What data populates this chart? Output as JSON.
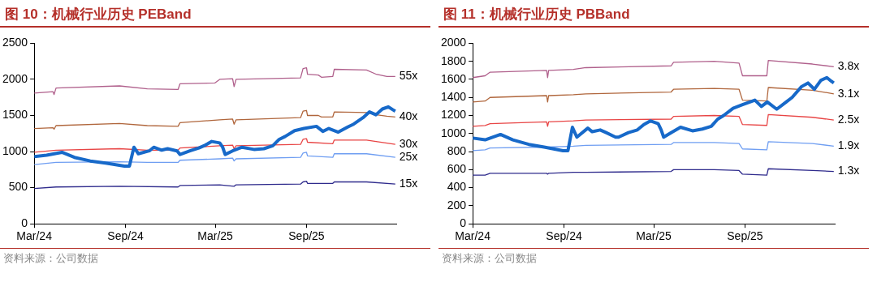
{
  "chart_data": [
    {
      "type": "line",
      "title": "图 10：机械行业历史 PEBand",
      "annotations": [
        "资料来源：公司数据"
      ],
      "xlim": [
        "2024-03-01",
        "2026-03-01"
      ],
      "xticks": [
        {
          "value": "2024-03-01",
          "label": "Mar/24"
        },
        {
          "value": "2024-09-01",
          "label": "Sep/24"
        },
        {
          "value": "2025-03-01",
          "label": "Mar/25"
        },
        {
          "value": "2025-09-01",
          "label": "Sep/25"
        }
      ],
      "ylim": [
        0,
        2500
      ],
      "yticks": [
        0,
        500,
        1000,
        1500,
        2000,
        2500
      ],
      "grid": false,
      "legend": false,
      "marker": "none",
      "line_style": "solid",
      "series": [
        {
          "name": "55x",
          "color": "#b0608c",
          "x": [
            "2024-03-01",
            "2024-04-08",
            "2024-04-10",
            "2024-04-14",
            "2024-08-20",
            "2024-10-15",
            "2024-12-16",
            "2024-12-20",
            "2025-02-28",
            "2025-03-10",
            "2025-04-05",
            "2025-04-08",
            "2025-04-12",
            "2025-08-20",
            "2025-08-25",
            "2025-09-01",
            "2025-09-03",
            "2025-09-25",
            "2025-10-01",
            "2025-10-24",
            "2025-10-27",
            "2025-12-31",
            "2026-01-20",
            "2026-02-10",
            "2026-02-27"
          ],
          "values": [
            1810,
            1830,
            1790,
            1880,
            1910,
            1870,
            1860,
            1940,
            1950,
            2000,
            2010,
            1900,
            2000,
            2020,
            2150,
            2160,
            2070,
            2060,
            2030,
            2040,
            2140,
            2130,
            2070,
            2040,
            2040
          ]
        },
        {
          "name": "40x",
          "color": "#b0663c",
          "x": [
            "2024-03-01",
            "2024-04-08",
            "2024-04-10",
            "2024-04-14",
            "2024-08-20",
            "2024-10-15",
            "2024-12-16",
            "2024-12-20",
            "2025-03-10",
            "2025-04-05",
            "2025-04-08",
            "2025-04-12",
            "2025-08-20",
            "2025-08-25",
            "2025-09-01",
            "2025-09-03",
            "2025-09-25",
            "2025-10-01",
            "2025-10-24",
            "2025-10-27",
            "2025-12-31",
            "2026-01-20",
            "2026-02-10",
            "2026-02-27"
          ],
          "values": [
            1320,
            1330,
            1310,
            1360,
            1390,
            1360,
            1350,
            1400,
            1440,
            1450,
            1380,
            1440,
            1470,
            1560,
            1570,
            1500,
            1500,
            1480,
            1480,
            1550,
            1540,
            1510,
            1490,
            1480
          ]
        },
        {
          "name": "30x",
          "color": "#e84545",
          "x": [
            "2024-03-01",
            "2024-04-14",
            "2024-08-20",
            "2024-10-15",
            "2024-12-16",
            "2024-12-20",
            "2025-03-10",
            "2025-04-05",
            "2025-04-08",
            "2025-04-12",
            "2025-08-20",
            "2025-08-25",
            "2025-09-01",
            "2025-09-03",
            "2025-10-24",
            "2025-10-27",
            "2025-12-31",
            "2026-02-27"
          ],
          "values": [
            990,
            1020,
            1040,
            1020,
            1020,
            1050,
            1080,
            1090,
            1040,
            1080,
            1100,
            1170,
            1180,
            1130,
            1110,
            1160,
            1160,
            1100
          ]
        },
        {
          "name": "25x",
          "color": "#6f9ef2",
          "x": [
            "2024-03-01",
            "2024-04-14",
            "2024-08-20",
            "2024-10-15",
            "2024-12-16",
            "2024-12-20",
            "2025-03-10",
            "2025-04-05",
            "2025-04-08",
            "2025-04-12",
            "2025-08-20",
            "2025-08-25",
            "2025-09-01",
            "2025-09-03",
            "2025-10-24",
            "2025-10-27",
            "2025-12-31",
            "2026-02-27"
          ],
          "values": [
            820,
            850,
            860,
            850,
            850,
            880,
            900,
            910,
            870,
            900,
            920,
            980,
            990,
            940,
            920,
            970,
            970,
            920
          ]
        },
        {
          "name": "15x",
          "color": "#2e2a8c",
          "x": [
            "2024-03-01",
            "2024-04-14",
            "2024-08-20",
            "2024-12-16",
            "2024-12-20",
            "2025-03-10",
            "2025-04-08",
            "2025-04-12",
            "2025-08-20",
            "2025-08-25",
            "2025-09-01",
            "2025-09-03",
            "2025-10-24",
            "2025-10-27",
            "2025-12-31",
            "2026-02-27"
          ],
          "values": [
            490,
            510,
            520,
            510,
            530,
            540,
            520,
            540,
            550,
            580,
            590,
            560,
            560,
            580,
            580,
            550
          ]
        },
        {
          "color": "#1769c9",
          "x": [
            "2024-03-01",
            "2024-03-26",
            "2024-04-26",
            "2024-05-21",
            "2024-06-22",
            "2024-07-23",
            "2024-08-30",
            "2024-09-09",
            "2024-09-18",
            "2024-09-27",
            "2024-10-19",
            "2024-10-28",
            "2024-11-13",
            "2024-11-25",
            "2024-12-14",
            "2024-12-20",
            "2025-01-09",
            "2025-01-27",
            "2025-02-09",
            "2025-02-22",
            "2025-03-10",
            "2025-03-16",
            "2025-03-21",
            "2025-04-05",
            "2025-04-24",
            "2025-05-18",
            "2025-06-07",
            "2025-06-25",
            "2025-07-08",
            "2025-07-20",
            "2025-08-08",
            "2025-08-27",
            "2025-09-21",
            "2025-10-04",
            "2025-10-16",
            "2025-11-04",
            "2025-11-23",
            "2025-12-05",
            "2025-12-24",
            "2026-01-06",
            "2026-01-19",
            "2026-02-01",
            "2026-02-13",
            "2026-02-22",
            "2026-02-27"
          ],
          "values": [
            930,
            950,
            990,
            920,
            870,
            840,
            800,
            800,
            1060,
            970,
            1010,
            1060,
            1020,
            1040,
            1010,
            960,
            1010,
            1050,
            1090,
            1140,
            1120,
            1060,
            960,
            1010,
            1060,
            1030,
            1040,
            1080,
            1170,
            1210,
            1290,
            1320,
            1350,
            1280,
            1320,
            1270,
            1340,
            1380,
            1470,
            1550,
            1510,
            1590,
            1620,
            1580,
            1560
          ]
        }
      ]
    },
    {
      "type": "line",
      "title": "图 11：机械行业历史 PBBand",
      "annotations": [
        "资料来源：公司数据"
      ],
      "xlim": [
        "2024-03-01",
        "2026-03-01"
      ],
      "xticks": [
        {
          "value": "2024-03-01",
          "label": "Mar/24"
        },
        {
          "value": "2024-09-01",
          "label": "Sep/24"
        },
        {
          "value": "2025-03-01",
          "label": "Mar/25"
        },
        {
          "value": "2025-09-01",
          "label": "Sep/25"
        }
      ],
      "ylim": [
        0,
        2000
      ],
      "yticks": [
        0,
        200,
        400,
        600,
        800,
        1000,
        1200,
        1400,
        1600,
        1800,
        2000
      ],
      "grid": false,
      "legend": false,
      "marker": "none",
      "line_style": "solid",
      "series": [
        {
          "name": "3.8x",
          "color": "#b0608c",
          "x": [
            "2024-03-01",
            "2024-03-26",
            "2024-04-05",
            "2024-07-28",
            "2024-07-30",
            "2024-08-01",
            "2024-09-20",
            "2024-10-15",
            "2025-04-05",
            "2025-04-10",
            "2025-07-01",
            "2025-08-20",
            "2025-08-27",
            "2025-10-15",
            "2025-10-18",
            "2026-01-15",
            "2026-02-27"
          ],
          "values": [
            1620,
            1640,
            1680,
            1700,
            1620,
            1700,
            1710,
            1730,
            1750,
            1790,
            1800,
            1780,
            1640,
            1640,
            1810,
            1770,
            1740
          ]
        },
        {
          "name": "3.1x",
          "color": "#b0663c",
          "x": [
            "2024-03-01",
            "2024-03-26",
            "2024-04-05",
            "2024-07-28",
            "2024-07-30",
            "2024-08-01",
            "2024-09-20",
            "2024-10-15",
            "2025-04-05",
            "2025-04-10",
            "2025-07-01",
            "2025-08-20",
            "2025-08-27",
            "2025-10-15",
            "2025-10-18",
            "2026-01-15",
            "2026-02-27"
          ],
          "values": [
            1350,
            1360,
            1400,
            1420,
            1350,
            1420,
            1430,
            1440,
            1460,
            1490,
            1500,
            1490,
            1370,
            1360,
            1510,
            1480,
            1440
          ]
        },
        {
          "name": "2.5x",
          "color": "#e84545",
          "x": [
            "2024-03-01",
            "2024-03-26",
            "2024-04-05",
            "2024-07-28",
            "2024-07-30",
            "2024-08-01",
            "2024-09-20",
            "2024-10-15",
            "2025-04-05",
            "2025-04-10",
            "2025-07-01",
            "2025-08-20",
            "2025-08-27",
            "2025-10-15",
            "2025-10-18",
            "2026-01-15",
            "2026-02-27"
          ],
          "values": [
            1080,
            1090,
            1110,
            1130,
            1080,
            1130,
            1140,
            1150,
            1160,
            1190,
            1200,
            1190,
            1100,
            1090,
            1210,
            1180,
            1150
          ]
        },
        {
          "name": "1.9x",
          "color": "#6f9ef2",
          "x": [
            "2024-03-01",
            "2024-03-26",
            "2024-04-05",
            "2024-07-28",
            "2024-07-30",
            "2024-08-01",
            "2024-09-20",
            "2024-10-15",
            "2025-04-05",
            "2025-04-10",
            "2025-07-01",
            "2025-08-20",
            "2025-08-27",
            "2025-10-15",
            "2025-10-18",
            "2026-01-15",
            "2026-02-27"
          ],
          "values": [
            810,
            820,
            840,
            850,
            840,
            850,
            860,
            870,
            880,
            900,
            900,
            890,
            830,
            820,
            910,
            890,
            860
          ]
        },
        {
          "name": "1.3x",
          "color": "#2e2a8c",
          "x": [
            "2024-03-01",
            "2024-03-26",
            "2024-04-05",
            "2024-07-28",
            "2024-07-30",
            "2024-08-01",
            "2024-09-20",
            "2024-10-15",
            "2025-04-05",
            "2025-04-10",
            "2025-07-01",
            "2025-08-20",
            "2025-08-27",
            "2025-10-15",
            "2025-10-18",
            "2026-01-15",
            "2026-02-27"
          ],
          "values": [
            540,
            540,
            560,
            560,
            550,
            560,
            570,
            570,
            580,
            600,
            600,
            590,
            550,
            540,
            610,
            590,
            580
          ]
        },
        {
          "color": "#1769c9",
          "x": [
            "2024-03-01",
            "2024-03-26",
            "2024-04-26",
            "2024-05-21",
            "2024-06-22",
            "2024-07-23",
            "2024-08-30",
            "2024-09-09",
            "2024-09-18",
            "2024-09-27",
            "2024-10-19",
            "2024-10-28",
            "2024-11-13",
            "2024-11-25",
            "2024-12-14",
            "2024-12-20",
            "2025-01-09",
            "2025-01-27",
            "2025-02-09",
            "2025-02-22",
            "2025-03-10",
            "2025-03-16",
            "2025-03-21",
            "2025-04-05",
            "2025-04-24",
            "2025-05-18",
            "2025-06-07",
            "2025-06-25",
            "2025-07-08",
            "2025-07-20",
            "2025-08-08",
            "2025-08-27",
            "2025-09-21",
            "2025-10-04",
            "2025-10-16",
            "2025-11-04",
            "2025-11-23",
            "2025-12-05",
            "2025-12-24",
            "2026-01-06",
            "2026-01-19",
            "2026-02-01",
            "2026-02-13",
            "2026-02-22",
            "2026-02-27"
          ],
          "values": [
            950,
            930,
            990,
            930,
            880,
            850,
            810,
            810,
            1070,
            960,
            1060,
            1020,
            1040,
            1010,
            960,
            960,
            1010,
            1040,
            1100,
            1140,
            1110,
            1040,
            960,
            1010,
            1070,
            1030,
            1050,
            1080,
            1160,
            1200,
            1280,
            1320,
            1370,
            1300,
            1350,
            1270,
            1350,
            1400,
            1520,
            1560,
            1490,
            1590,
            1620,
            1580,
            1560
          ]
        }
      ]
    }
  ]
}
